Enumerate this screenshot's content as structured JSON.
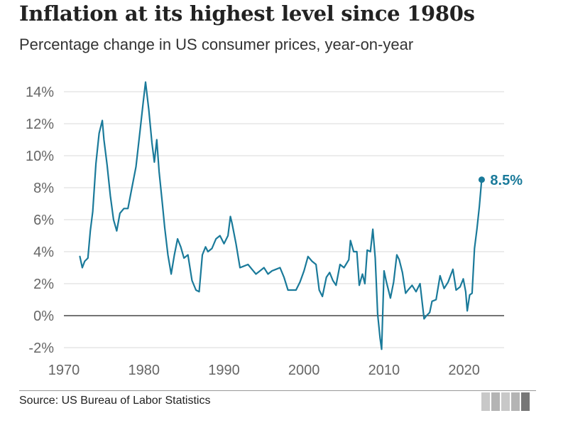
{
  "header": {
    "title": "Inflation at its highest level since 1980s",
    "subtitle": "Percentage change in US consumer prices, year-on-year"
  },
  "footer": {
    "source": "Source: US Bureau of Labor Statistics"
  },
  "colors": {
    "line": "#1a7a9a",
    "grid": "#d9d9d9",
    "zero_line": "#222222",
    "tick_text": "#666666"
  },
  "chart_data": {
    "type": "line",
    "title": "Inflation at its highest level since 1980s",
    "subtitle": "Percentage change in US consumer prices, year-on-year",
    "xlabel": "",
    "ylabel": "",
    "xlim": [
      1970,
      2025
    ],
    "ylim": [
      -2,
      14
    ],
    "x_ticks": [
      1970,
      1980,
      1990,
      2000,
      2010,
      2020
    ],
    "x_tick_labels": [
      "1970",
      "1980",
      "1990",
      "2000",
      "2010",
      "2020"
    ],
    "y_ticks": [
      -2,
      0,
      2,
      4,
      6,
      8,
      10,
      12,
      14
    ],
    "y_tick_labels": [
      "-2%",
      "0%",
      "2%",
      "4%",
      "6%",
      "8%",
      "10%",
      "12%",
      "14%"
    ],
    "grid": true,
    "end_label": "8.5%",
    "series": [
      {
        "x": [
          1972.0,
          1972.3,
          1972.6,
          1973.0,
          1973.3,
          1973.6,
          1974.0,
          1974.4,
          1974.8,
          1975.0,
          1975.4,
          1975.8,
          1976.2,
          1976.6,
          1977.0,
          1977.5,
          1978.0,
          1978.5,
          1979.0,
          1979.5,
          1979.9,
          1980.2,
          1980.6,
          1981.0,
          1981.3,
          1981.6,
          1981.9,
          1982.3,
          1982.6,
          1983.0,
          1983.4,
          1983.8,
          1984.2,
          1984.6,
          1985.0,
          1985.5,
          1986.0,
          1986.5,
          1986.9,
          1987.3,
          1987.7,
          1988.0,
          1988.5,
          1989.0,
          1989.5,
          1990.0,
          1990.5,
          1990.8,
          1991.0,
          1991.5,
          1992.0,
          1992.5,
          1993.0,
          1993.5,
          1994.0,
          1994.5,
          1995.0,
          1995.5,
          1996.0,
          1996.5,
          1997.0,
          1997.5,
          1998.0,
          1998.5,
          1999.0,
          1999.5,
          2000.0,
          2000.5,
          2001.0,
          2001.5,
          2001.9,
          2002.3,
          2002.8,
          2003.2,
          2003.6,
          2004.0,
          2004.5,
          2005.0,
          2005.6,
          2005.8,
          2006.2,
          2006.6,
          2006.9,
          2007.3,
          2007.6,
          2007.9,
          2008.3,
          2008.6,
          2008.9,
          2009.2,
          2009.5,
          2009.7,
          2010.0,
          2010.3,
          2010.8,
          2011.2,
          2011.6,
          2011.9,
          2012.3,
          2012.7,
          2013.0,
          2013.5,
          2014.0,
          2014.5,
          2015.0,
          2015.3,
          2015.7,
          2016.0,
          2016.5,
          2017.0,
          2017.5,
          2018.0,
          2018.6,
          2019.0,
          2019.5,
          2019.9,
          2020.2,
          2020.4,
          2020.7,
          2021.0,
          2021.3,
          2021.6,
          2021.9,
          2022.2
        ],
        "values": [
          3.7,
          3.0,
          3.4,
          3.6,
          5.3,
          6.5,
          9.5,
          11.4,
          12.2,
          11.0,
          9.4,
          7.5,
          6.0,
          5.3,
          6.4,
          6.7,
          6.7,
          8.0,
          9.3,
          11.5,
          13.3,
          14.6,
          12.9,
          10.8,
          9.6,
          11.0,
          9.0,
          7.0,
          5.5,
          3.8,
          2.6,
          3.8,
          4.8,
          4.3,
          3.6,
          3.8,
          2.2,
          1.6,
          1.5,
          3.8,
          4.3,
          4.0,
          4.2,
          4.8,
          5.0,
          4.5,
          5.0,
          6.2,
          5.8,
          4.5,
          3.0,
          3.1,
          3.2,
          2.9,
          2.6,
          2.8,
          3.0,
          2.6,
          2.8,
          2.9,
          3.0,
          2.4,
          1.6,
          1.6,
          1.6,
          2.1,
          2.8,
          3.7,
          3.4,
          3.2,
          1.6,
          1.2,
          2.4,
          2.7,
          2.2,
          1.9,
          3.2,
          3.0,
          3.5,
          4.7,
          4.0,
          4.0,
          1.9,
          2.6,
          2.0,
          4.1,
          4.0,
          5.4,
          3.6,
          0.1,
          -1.4,
          -2.1,
          2.8,
          2.1,
          1.1,
          2.1,
          3.8,
          3.5,
          2.7,
          1.4,
          1.6,
          1.9,
          1.5,
          2.0,
          -0.2,
          0.0,
          0.2,
          0.9,
          1.0,
          2.5,
          1.7,
          2.1,
          2.9,
          1.6,
          1.8,
          2.3,
          1.5,
          0.3,
          1.3,
          1.4,
          4.2,
          5.4,
          6.8,
          8.5
        ]
      }
    ]
  }
}
